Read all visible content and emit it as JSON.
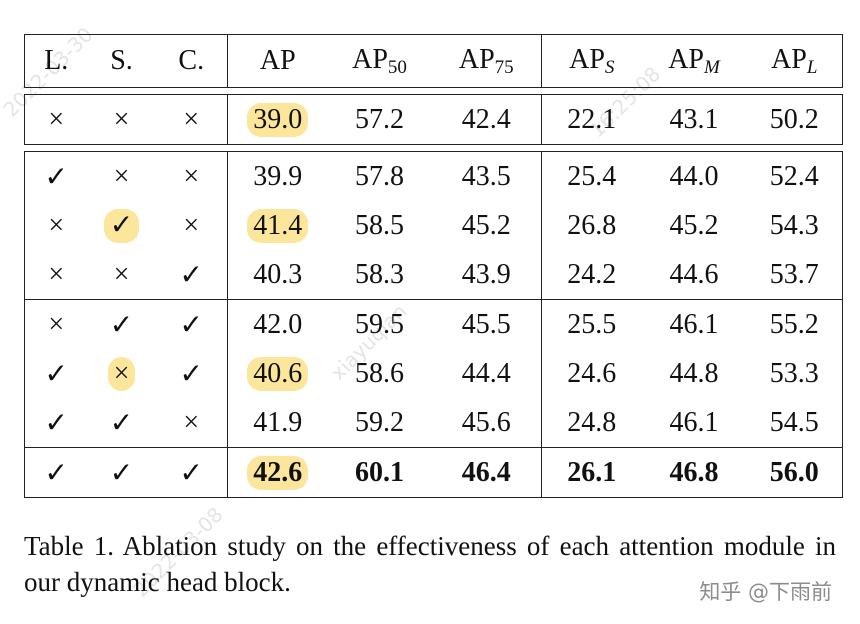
{
  "table": {
    "headers": [
      "L.",
      "S.",
      "C.",
      "AP",
      "AP",
      "AP",
      "AP",
      "AP",
      "AP"
    ],
    "header_subs": [
      "",
      "",
      "",
      "",
      "50",
      "75",
      "S",
      "M",
      "L"
    ],
    "rows": [
      [
        "×",
        "×",
        "×",
        "39.0",
        "57.2",
        "42.4",
        "22.1",
        "43.1",
        "50.2"
      ],
      [
        "✓",
        "×",
        "×",
        "39.9",
        "57.8",
        "43.5",
        "25.4",
        "44.0",
        "52.4"
      ],
      [
        "×",
        "✓",
        "×",
        "41.4",
        "58.5",
        "45.2",
        "26.8",
        "45.2",
        "54.3"
      ],
      [
        "×",
        "×",
        "✓",
        "40.3",
        "58.3",
        "43.9",
        "24.2",
        "44.6",
        "53.7"
      ],
      [
        "×",
        "✓",
        "✓",
        "42.0",
        "59.5",
        "45.5",
        "25.5",
        "46.1",
        "55.2"
      ],
      [
        "✓",
        "×",
        "✓",
        "40.6",
        "58.6",
        "44.4",
        "24.6",
        "44.8",
        "53.3"
      ],
      [
        "✓",
        "✓",
        "×",
        "41.9",
        "59.2",
        "45.6",
        "24.8",
        "46.1",
        "54.5"
      ],
      [
        "✓",
        "✓",
        "✓",
        "42.6",
        "60.1",
        "46.4",
        "26.1",
        "46.8",
        "56.0"
      ]
    ]
  },
  "caption": "Table 1. Ablation study on the effectiveness of each attention module in our dynamic head block.",
  "watermark_text": "知乎 @下雨前",
  "stamp_marks": [
    "2022-03-30",
    "16:25:08",
    "xiayuqian",
    "2022-03-08"
  ],
  "colors": {
    "highlight": "#fbe69b",
    "text": "#111111",
    "watermark": "#8c8c8c"
  }
}
